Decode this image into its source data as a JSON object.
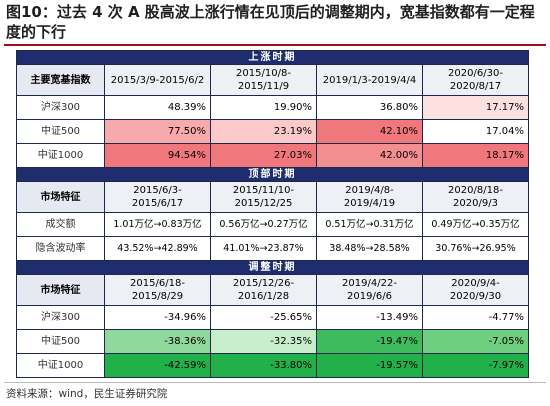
{
  "title": "图10：过去 4 次 A 股高波上涨行情在见顶后的调整期内，宽基指数都有一定程度的下行",
  "source": "资料来源：wind，民生证券研究院",
  "colors": {
    "section_bg": "#1f2d6e",
    "red_strong": "#f0787c",
    "red_mid": "#f7a9ab",
    "red_light": "#fde0e0",
    "green_strong": "#22b04a",
    "green_mid": "#6fcf80",
    "green_light": "#c8eecd"
  },
  "section1": {
    "title": "上涨时期",
    "corner": "主要宽基指数",
    "periods": [
      "2015/3/9-2015/6/2",
      "2015/10/8-2015/11/9",
      "2019/1/3-2019/4/4",
      "2020/6/30-2020/8/17"
    ],
    "rows": [
      {
        "label": "沪深300",
        "values": [
          "48.39%",
          "19.90%",
          "36.80%",
          "17.17%"
        ]
      },
      {
        "label": "中证500",
        "values": [
          "77.50%",
          "23.19%",
          "42.10%",
          "17.04%"
        ]
      },
      {
        "label": "中证1000",
        "values": [
          "94.54%",
          "27.03%",
          "42.00%",
          "18.17%"
        ]
      }
    ]
  },
  "section2": {
    "title": "顶部时期",
    "corner": "市场特征",
    "periods": [
      "2015/6/3-2015/6/17",
      "2015/11/10-2015/12/25",
      "2019/4/8-2019/4/19",
      "2020/8/18-2020/9/3"
    ],
    "rows": [
      {
        "label": "成交额",
        "values": [
          "1.01万亿→0.83万亿",
          "0.56万亿→0.27万亿",
          "0.51万亿→0.31万亿",
          "0.49万亿→0.35万亿"
        ]
      },
      {
        "label": "隐含波动率",
        "values": [
          "43.52%→42.89%",
          "41.01%→23.87%",
          "38.48%→28.58%",
          "30.76%→26.95%"
        ]
      }
    ]
  },
  "section3": {
    "title": "调整时期",
    "corner": "市场特征",
    "periods": [
      "2015/6/18-2015/8/29",
      "2015/12/26-2016/1/28",
      "2019/4/22-2019/6/6",
      "2020/9/4-2020/9/30"
    ],
    "rows": [
      {
        "label": "沪深300",
        "values": [
          "-34.96%",
          "-25.65%",
          "-13.49%",
          "-4.77%"
        ]
      },
      {
        "label": "中证500",
        "values": [
          "-38.36%",
          "-32.35%",
          "-19.47%",
          "-7.05%"
        ]
      },
      {
        "label": "中证1000",
        "values": [
          "-42.59%",
          "-33.80%",
          "-19.57%",
          "-7.97%"
        ]
      }
    ]
  }
}
